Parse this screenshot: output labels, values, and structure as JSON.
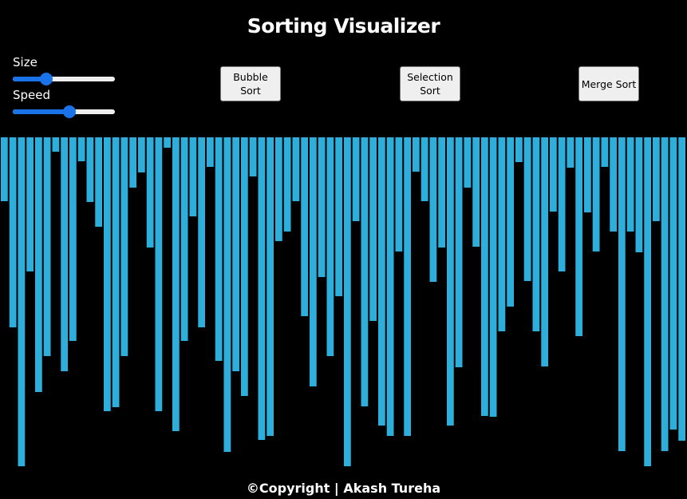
{
  "title": "Sorting Visualizer",
  "controls": {
    "size": {
      "label": "Size",
      "value_fraction": 0.3
    },
    "speed": {
      "label": "Speed",
      "value_fraction": 0.56
    }
  },
  "buttons": {
    "bubble": "Bubble Sort",
    "selection": "Selection Sort",
    "merge": "Merge Sort"
  },
  "bar_color": "#2eaedb",
  "accent_color": "#1a73e8",
  "array_values": [
    80,
    238,
    412,
    168,
    319,
    274,
    18,
    293,
    255,
    30,
    81,
    112,
    343,
    338,
    274,
    63,
    44,
    138,
    343,
    13,
    368,
    255,
    99,
    238,
    37,
    280,
    394,
    293,
    324,
    49,
    379,
    374,
    130,
    118,
    80,
    224,
    312,
    175,
    274,
    199,
    412,
    105,
    337,
    230,
    361,
    374,
    143,
    374,
    43,
    80,
    181,
    138,
    361,
    288,
    63,
    137,
    349,
    350,
    243,
    212,
    31,
    180,
    243,
    287,
    93,
    168,
    38,
    249,
    94,
    143,
    37,
    118,
    393,
    118,
    144,
    412,
    105,
    393,
    366,
    380
  ]
}
